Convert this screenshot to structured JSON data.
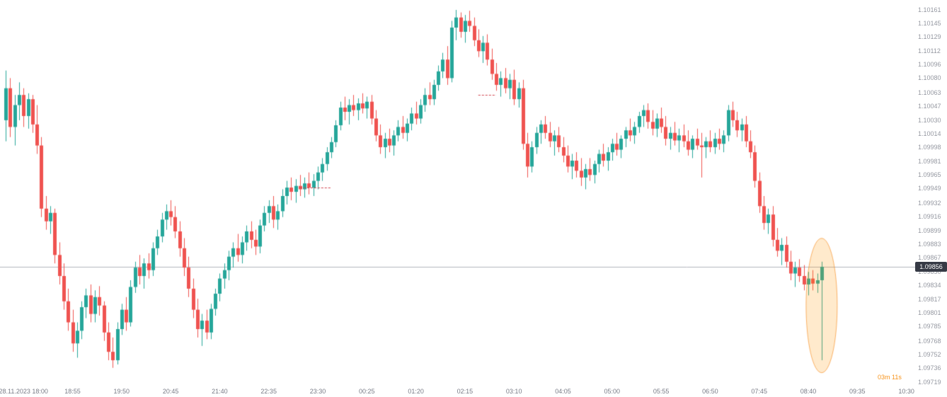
{
  "countdown": {
    "text": "03m 11s"
  },
  "chart_data": {
    "type": "candlestick",
    "title": "",
    "timeframe_minutes": 5,
    "price_axis": {
      "max": 1.10161,
      "min": 1.09719,
      "current_price": 1.09856,
      "current_price_label": "1.09856",
      "labels": [
        "1.10161",
        "1.10145",
        "1.10129",
        "1.10112",
        "1.10096",
        "1.10080",
        "1.10063",
        "1.10047",
        "1.10030",
        "1.10014",
        "1.09998",
        "1.09981",
        "1.09965",
        "1.09949",
        "1.09932",
        "1.09916",
        "1.09899",
        "1.09883",
        "1.09867",
        "1.09850",
        "1.09834",
        "1.09817",
        "1.09801",
        "1.09785",
        "1.09768",
        "1.09752",
        "1.09736",
        "1.09719"
      ]
    },
    "time_axis": {
      "labels": [
        "28.11.2023 18:00",
        "18:55",
        "19:50",
        "20:45",
        "21:40",
        "22:35",
        "23:30",
        "00:25",
        "01:20",
        "02:15",
        "03:10",
        "04:05",
        "05:00",
        "05:55",
        "06:50",
        "07:45",
        "08:40",
        "09:35",
        "10:30"
      ],
      "candles_per_label": 11,
      "first_label_candle_index": 4
    },
    "colors": {
      "background": "#ffffff",
      "up": "#26a69a",
      "down": "#ef5350",
      "price_line": "#b2b5be",
      "axis_text": "#9598a1",
      "time_text": "#787b86",
      "badge_bg": "#363a45",
      "badge_text": "#ffffff",
      "dashed_line": "#d1434e",
      "ellipse_fill": "rgba(255,152,0,0.20)",
      "ellipse_stroke": "rgba(245,124,0,0.55)",
      "countdown": "#f7931a"
    },
    "annotations": {
      "dashed_lines": [
        {
          "price": 1.0995,
          "from_candle": 66,
          "to_candle": 73
        },
        {
          "price": 1.1006,
          "from_candle": 106,
          "to_candle": 110
        }
      ],
      "highlight_ellipse": {
        "candle_index": 183,
        "center_price": 1.0981,
        "radius_x_px": 22,
        "radius_y_px": 95
      }
    },
    "candles": [
      [
        1.1003,
        1.10089,
        1.10005,
        1.10068
      ],
      [
        1.10068,
        1.1008,
        1.1001,
        1.10022
      ],
      [
        1.10022,
        1.1006,
        1.1,
        1.10048
      ],
      [
        1.10048,
        1.10075,
        1.1003,
        1.1006
      ],
      [
        1.1006,
        1.10068,
        1.10022,
        1.10035
      ],
      [
        1.10035,
        1.10062,
        1.1002,
        1.10055
      ],
      [
        1.10055,
        1.1006,
        1.10015,
        1.10025
      ],
      [
        1.10025,
        1.10048,
        1.0999,
        1.1
      ],
      [
        1.1,
        1.1001,
        1.09915,
        1.09925
      ],
      [
        1.09925,
        1.0994,
        1.099,
        1.0991
      ],
      [
        1.0991,
        1.09928,
        1.09895,
        1.0992
      ],
      [
        1.0992,
        1.09925,
        1.0986,
        1.0987
      ],
      [
        1.0987,
        1.09885,
        1.09835,
        1.09845
      ],
      [
        1.09845,
        1.0986,
        1.09805,
        1.09815
      ],
      [
        1.09815,
        1.0983,
        1.0978,
        1.0979
      ],
      [
        1.0979,
        1.09805,
        1.09755,
        1.09765
      ],
      [
        1.09765,
        1.0979,
        1.09748,
        1.0978
      ],
      [
        1.0978,
        1.09815,
        1.0977,
        1.09808
      ],
      [
        1.09808,
        1.0983,
        1.09795,
        1.09822
      ],
      [
        1.09822,
        1.09835,
        1.0979,
        1.098
      ],
      [
        1.098,
        1.09828,
        1.0979,
        1.0982
      ],
      [
        1.0982,
        1.09833,
        1.09798,
        1.0981
      ],
      [
        1.0981,
        1.09815,
        1.09768,
        1.09778
      ],
      [
        1.09778,
        1.0979,
        1.09745,
        1.09755
      ],
      [
        1.09755,
        1.09772,
        1.09736,
        1.09745
      ],
      [
        1.09745,
        1.0979,
        1.0974,
        1.09782
      ],
      [
        1.09782,
        1.09812,
        1.09775,
        1.09805
      ],
      [
        1.09805,
        1.0982,
        1.0978,
        1.0979
      ],
      [
        1.0979,
        1.0984,
        1.09785,
        1.09832
      ],
      [
        1.09832,
        1.09862,
        1.09825,
        1.09855
      ],
      [
        1.09855,
        1.0987,
        1.09835,
        1.09845
      ],
      [
        1.09845,
        1.09866,
        1.0983,
        1.0986
      ],
      [
        1.0986,
        1.09872,
        1.09842,
        1.09852
      ],
      [
        1.09852,
        1.09885,
        1.09845,
        1.09878
      ],
      [
        1.09878,
        1.099,
        1.0987,
        1.09892
      ],
      [
        1.09892,
        1.0992,
        1.09885,
        1.09912
      ],
      [
        1.09912,
        1.0993,
        1.099,
        1.09922
      ],
      [
        1.09922,
        1.09935,
        1.09905,
        1.09915
      ],
      [
        1.09915,
        1.09928,
        1.0989,
        1.09898
      ],
      [
        1.09898,
        1.0991,
        1.09868,
        1.09878
      ],
      [
        1.09878,
        1.0989,
        1.09845,
        1.09855
      ],
      [
        1.09855,
        1.09868,
        1.0982,
        1.0983
      ],
      [
        1.0983,
        1.09842,
        1.09795,
        1.09805
      ],
      [
        1.09805,
        1.09818,
        1.09772,
        1.09782
      ],
      [
        1.09782,
        1.098,
        1.09762,
        1.09792
      ],
      [
        1.09792,
        1.09805,
        1.0977,
        1.09778
      ],
      [
        1.09778,
        1.09812,
        1.0977,
        1.09806
      ],
      [
        1.09806,
        1.0983,
        1.09798,
        1.09824
      ],
      [
        1.09824,
        1.09848,
        1.09815,
        1.09842
      ],
      [
        1.09842,
        1.0986,
        1.0983,
        1.09852
      ],
      [
        1.09852,
        1.09875,
        1.0984,
        1.09868
      ],
      [
        1.09868,
        1.09885,
        1.09855,
        1.09878
      ],
      [
        1.09878,
        1.09895,
        1.09862,
        1.0987
      ],
      [
        1.0987,
        1.09892,
        1.0986,
        1.09885
      ],
      [
        1.09885,
        1.09905,
        1.09875,
        1.09898
      ],
      [
        1.09898,
        1.0991,
        1.09878,
        1.09888
      ],
      [
        1.09888,
        1.099,
        1.0987,
        1.0988
      ],
      [
        1.0988,
        1.09912,
        1.09872,
        1.09905
      ],
      [
        1.09905,
        1.09928,
        1.09898,
        1.0992
      ],
      [
        1.0992,
        1.09935,
        1.09908,
        1.09928
      ],
      [
        1.09928,
        1.0994,
        1.09902,
        1.09912
      ],
      [
        1.09912,
        1.0993,
        1.099,
        1.09922
      ],
      [
        1.09922,
        1.09948,
        1.09915,
        1.0994
      ],
      [
        1.0994,
        1.09958,
        1.0993,
        1.0995
      ],
      [
        1.0995,
        1.09962,
        1.09935,
        1.09945
      ],
      [
        1.09945,
        1.0996,
        1.09932,
        1.09952
      ],
      [
        1.09952,
        1.09965,
        1.0994,
        1.09948
      ],
      [
        1.09948,
        1.09962,
        1.09938,
        1.09955
      ],
      [
        1.09955,
        1.09968,
        1.09942,
        1.0995
      ],
      [
        1.0995,
        1.09966,
        1.0994,
        1.09958
      ],
      [
        1.09958,
        1.09975,
        1.09948,
        1.09968
      ],
      [
        1.09968,
        1.09985,
        1.09958,
        1.09978
      ],
      [
        1.09978,
        1.09998,
        1.0997,
        1.09992
      ],
      [
        1.09992,
        1.1001,
        1.09985,
        1.10004
      ],
      [
        1.10004,
        1.1003,
        1.09998,
        1.10024
      ],
      [
        1.10024,
        1.10052,
        1.10018,
        1.10045
      ],
      [
        1.10045,
        1.10058,
        1.1003,
        1.1004
      ],
      [
        1.1004,
        1.10055,
        1.10025,
        1.10048
      ],
      [
        1.10048,
        1.1006,
        1.10035,
        1.10042
      ],
      [
        1.10042,
        1.10056,
        1.1003,
        1.1005
      ],
      [
        1.1005,
        1.10062,
        1.10038,
        1.10044
      ],
      [
        1.10044,
        1.10058,
        1.10032,
        1.10052
      ],
      [
        1.10052,
        1.1006,
        1.10025,
        1.10032
      ],
      [
        1.10032,
        1.10042,
        1.10005,
        1.10012
      ],
      [
        1.10012,
        1.10025,
        1.0999,
        1.09998
      ],
      [
        1.09998,
        1.10015,
        1.09985,
        1.10008
      ],
      [
        1.10008,
        1.1002,
        1.09992,
        1.1
      ],
      [
        1.1,
        1.10018,
        1.09988,
        1.10012
      ],
      [
        1.10012,
        1.1003,
        1.10005,
        1.10022
      ],
      [
        1.10022,
        1.10035,
        1.10008,
        1.10015
      ],
      [
        1.10015,
        1.10032,
        1.10005,
        1.10026
      ],
      [
        1.10026,
        1.10045,
        1.10018,
        1.10038
      ],
      [
        1.10038,
        1.10052,
        1.10025,
        1.10032
      ],
      [
        1.10032,
        1.10055,
        1.10026,
        1.10048
      ],
      [
        1.10048,
        1.10068,
        1.1004,
        1.1006
      ],
      [
        1.1006,
        1.10075,
        1.10048,
        1.10055
      ],
      [
        1.10055,
        1.10078,
        1.10048,
        1.10072
      ],
      [
        1.10072,
        1.10095,
        1.10065,
        1.10088
      ],
      [
        1.10088,
        1.1011,
        1.1008,
        1.10102
      ],
      [
        1.10102,
        1.10118,
        1.10072,
        1.1008
      ],
      [
        1.1008,
        1.10148,
        1.10075,
        1.1014
      ],
      [
        1.1014,
        1.10161,
        1.10125,
        1.10152
      ],
      [
        1.10152,
        1.10158,
        1.10128,
        1.10135
      ],
      [
        1.10135,
        1.10155,
        1.10122,
        1.10148
      ],
      [
        1.10148,
        1.1016,
        1.10135,
        1.10142
      ],
      [
        1.10142,
        1.10152,
        1.10118,
        1.10125
      ],
      [
        1.10125,
        1.10138,
        1.10105,
        1.10112
      ],
      [
        1.10112,
        1.1013,
        1.10098,
        1.10122
      ],
      [
        1.10122,
        1.10132,
        1.10095,
        1.10102
      ],
      [
        1.10102,
        1.10115,
        1.10078,
        1.10085
      ],
      [
        1.10085,
        1.10098,
        1.10065,
        1.10072
      ],
      [
        1.10072,
        1.10088,
        1.10058,
        1.1008
      ],
      [
        1.1008,
        1.10092,
        1.10062,
        1.10068
      ],
      [
        1.10068,
        1.10085,
        1.10055,
        1.10078
      ],
      [
        1.10078,
        1.1009,
        1.10048,
        1.10055
      ],
      [
        1.10055,
        1.10075,
        1.10045,
        1.10068
      ],
      [
        1.10068,
        1.10078,
        1.09995,
        1.10002
      ],
      [
        1.10002,
        1.10015,
        1.09962,
        1.09975
      ],
      [
        1.09975,
        1.10005,
        1.09968,
        1.09998
      ],
      [
        1.09998,
        1.10022,
        1.0999,
        1.10015
      ],
      [
        1.10015,
        1.1003,
        1.10002,
        1.10025
      ],
      [
        1.10025,
        1.10035,
        1.10008,
        1.10015
      ],
      [
        1.10015,
        1.10028,
        1.09998,
        1.10005
      ],
      [
        1.10005,
        1.10018,
        1.09988,
        1.10012
      ],
      [
        1.10012,
        1.10022,
        1.09992,
        1.09998
      ],
      [
        1.09998,
        1.1001,
        1.0998,
        1.09988
      ],
      [
        1.09988,
        1.1,
        1.09968,
        1.09975
      ],
      [
        1.09975,
        1.0999,
        1.0996,
        1.09982
      ],
      [
        1.09982,
        1.09992,
        1.09962,
        1.0997
      ],
      [
        1.0997,
        1.09985,
        1.09952,
        1.09962
      ],
      [
        1.09962,
        1.09978,
        1.09948,
        1.09972
      ],
      [
        1.09972,
        1.09985,
        1.09958,
        1.09965
      ],
      [
        1.09965,
        1.09982,
        1.09955,
        1.09978
      ],
      [
        1.09978,
        1.09995,
        1.09968,
        1.0999
      ],
      [
        1.0999,
        1.10002,
        1.09975,
        1.09982
      ],
      [
        1.09982,
        1.09998,
        1.0997,
        1.09992
      ],
      [
        1.09992,
        1.10008,
        1.09982,
        1.10002
      ],
      [
        1.10002,
        1.10015,
        1.09988,
        1.09995
      ],
      [
        1.09995,
        1.10012,
        1.09985,
        1.10008
      ],
      [
        1.10008,
        1.10022,
        1.09998,
        1.10018
      ],
      [
        1.10018,
        1.10032,
        1.10005,
        1.10012
      ],
      [
        1.10012,
        1.10028,
        1.10002,
        1.10022
      ],
      [
        1.10022,
        1.1004,
        1.10015,
        1.10035
      ],
      [
        1.10035,
        1.10048,
        1.10022,
        1.10042
      ],
      [
        1.10042,
        1.1005,
        1.1002,
        1.10028
      ],
      [
        1.10028,
        1.10042,
        1.10012,
        1.1002
      ],
      [
        1.1002,
        1.10038,
        1.1001,
        1.10032
      ],
      [
        1.10032,
        1.10045,
        1.10015,
        1.10022
      ],
      [
        1.10022,
        1.10035,
        1.1,
        1.10008
      ],
      [
        1.10008,
        1.10022,
        1.09995,
        1.10015
      ],
      [
        1.10015,
        1.10028,
        1.1,
        1.10006
      ],
      [
        1.10006,
        1.1002,
        1.09992,
        1.10012
      ],
      [
        1.10012,
        1.10025,
        1.09998,
        1.10005
      ],
      [
        1.10005,
        1.10018,
        1.09988,
        1.09995
      ],
      [
        1.09995,
        1.10012,
        1.09985,
        1.10008
      ],
      [
        1.10008,
        1.1002,
        1.09995,
        1.1
      ],
      [
        1.1,
        1.10015,
        1.09962,
        1.09998
      ],
      [
        1.09998,
        1.1001,
        1.09985,
        1.10005
      ],
      [
        1.10005,
        1.10018,
        1.09992,
        1.09998
      ],
      [
        1.09998,
        1.10015,
        1.0999,
        1.10008
      ],
      [
        1.10008,
        1.1002,
        1.09995,
        1.10002
      ],
      [
        1.10002,
        1.10018,
        1.09992,
        1.10012
      ],
      [
        1.10012,
        1.10048,
        1.10005,
        1.10042
      ],
      [
        1.10042,
        1.10052,
        1.10022,
        1.1003
      ],
      [
        1.1003,
        1.1004,
        1.1001,
        1.10018
      ],
      [
        1.10018,
        1.10032,
        1.10005,
        1.10025
      ],
      [
        1.10025,
        1.10035,
        1.09998,
        1.10005
      ],
      [
        1.10005,
        1.10018,
        1.09985,
        1.09992
      ],
      [
        1.09992,
        1.1,
        1.0995,
        1.09958
      ],
      [
        1.09958,
        1.09968,
        1.0992,
        1.09928
      ],
      [
        1.09928,
        1.0994,
        1.099,
        1.09908
      ],
      [
        1.09908,
        1.09925,
        1.09895,
        1.09918
      ],
      [
        1.09918,
        1.09928,
        1.0988,
        1.09888
      ],
      [
        1.09888,
        1.09902,
        1.09868,
        1.09875
      ],
      [
        1.09875,
        1.0989,
        1.09858,
        1.09882
      ],
      [
        1.09882,
        1.09892,
        1.09855,
        1.09862
      ],
      [
        1.09862,
        1.09875,
        1.0984,
        1.09848
      ],
      [
        1.09848,
        1.09862,
        1.09832,
        1.09855
      ],
      [
        1.09855,
        1.09865,
        1.09838,
        1.09845
      ],
      [
        1.09845,
        1.09858,
        1.09828,
        1.09835
      ],
      [
        1.09835,
        1.0985,
        1.09822,
        1.09842
      ],
      [
        1.09842,
        1.09852,
        1.09828,
        1.09836
      ],
      [
        1.09836,
        1.09848,
        1.09825,
        1.0984
      ],
      [
        1.0984,
        1.09862,
        1.09745,
        1.09856
      ]
    ]
  }
}
